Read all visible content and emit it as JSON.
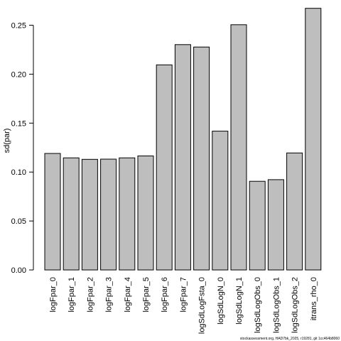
{
  "chart_data": {
    "type": "bar",
    "title": "",
    "xlabel": "",
    "ylabel": "sd(par)",
    "ylim": [
      0,
      0.27
    ],
    "yticks": [
      "0.00",
      "0.05",
      "0.10",
      "0.15",
      "0.20",
      "0.25"
    ],
    "categories": [
      "logFpar_0",
      "logFpar_1",
      "logFpar_2",
      "logFpar_3",
      "logFpar_4",
      "logFpar_5",
      "logFpar_6",
      "logFpar_7",
      "logSdLogFsta_0",
      "logSdLogN_0",
      "logSdLogN_1",
      "logSdLogObs_0",
      "logSdLogObs_1",
      "logSdLogObs_2",
      "itrans_rho_0"
    ],
    "values": [
      0.119,
      0.1145,
      0.113,
      0.1132,
      0.1145,
      0.1165,
      0.2095,
      0.2302,
      0.2277,
      0.1418,
      0.2505,
      0.0906,
      0.0922,
      0.1195,
      0.2673
    ],
    "bar_color": "#bebebe",
    "grid": false
  },
  "footer": "stockassessment.org, HAD7bk_2025, r19281, git 1cc464b8060"
}
